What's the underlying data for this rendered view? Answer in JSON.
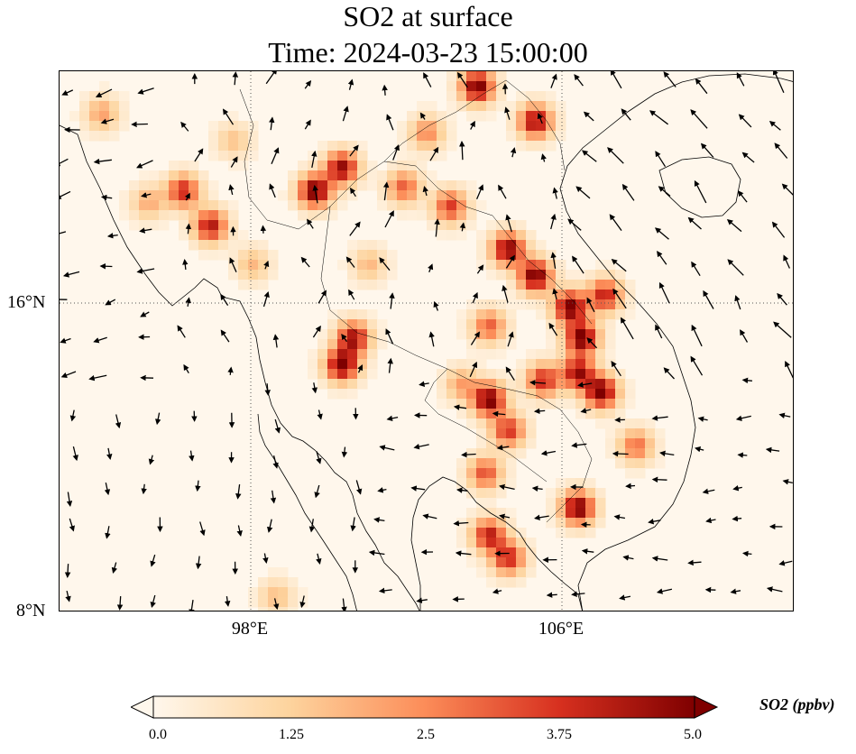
{
  "title": {
    "line1": "SO2 at surface",
    "line2": "Time: 2024-03-23 15:00:00"
  },
  "axes": {
    "y_ticks": [
      "16°N",
      "8°N"
    ],
    "x_ticks": [
      "98°E",
      "106°E"
    ],
    "gridlines": true,
    "gridline_style": "dotted"
  },
  "colorbar": {
    "label": "SO2 (ppbv)",
    "ticks": [
      "0.0",
      "1.25",
      "2.5",
      "3.75",
      "5.0"
    ],
    "min": 0.0,
    "max": 5.0,
    "colormap": "OrRd",
    "extend": "both",
    "colors": [
      "#fff7ec",
      "#fdd49e",
      "#fc8d59",
      "#d7301f",
      "#7f0000"
    ]
  },
  "chart_data": {
    "type": "heatmap",
    "variable": "SO2 at surface",
    "time": "2024-03-23 15:00:00",
    "units": "ppbv",
    "lon_range": [
      93.0,
      112.0
    ],
    "lat_range": [
      8.0,
      22.0
    ],
    "overlay": "wind vectors (quiver)",
    "hotspots": [
      {
        "lon": 103.8,
        "lat": 21.6,
        "value": 5.0
      },
      {
        "lon": 105.3,
        "lat": 20.7,
        "value": 4.5
      },
      {
        "lon": 103.1,
        "lat": 18.5,
        "value": 3.5
      },
      {
        "lon": 99.6,
        "lat": 18.9,
        "value": 5.0
      },
      {
        "lon": 100.3,
        "lat": 19.5,
        "value": 4.6
      },
      {
        "lon": 101.9,
        "lat": 19.0,
        "value": 3.0
      },
      {
        "lon": 96.2,
        "lat": 18.9,
        "value": 3.8
      },
      {
        "lon": 96.9,
        "lat": 18.0,
        "value": 4.2
      },
      {
        "lon": 100.3,
        "lat": 14.4,
        "value": 5.0
      },
      {
        "lon": 100.6,
        "lat": 15.1,
        "value": 4.3
      },
      {
        "lon": 104.6,
        "lat": 17.4,
        "value": 4.8
      },
      {
        "lon": 105.3,
        "lat": 16.7,
        "value": 5.0
      },
      {
        "lon": 106.2,
        "lat": 15.9,
        "value": 5.0
      },
      {
        "lon": 106.5,
        "lat": 15.1,
        "value": 5.0
      },
      {
        "lon": 107.1,
        "lat": 16.2,
        "value": 4.0
      },
      {
        "lon": 106.4,
        "lat": 14.2,
        "value": 4.4
      },
      {
        "lon": 107.0,
        "lat": 13.7,
        "value": 5.0
      },
      {
        "lon": 105.5,
        "lat": 14.0,
        "value": 3.8
      },
      {
        "lon": 104.1,
        "lat": 13.5,
        "value": 5.0
      },
      {
        "lon": 104.6,
        "lat": 12.7,
        "value": 3.6
      },
      {
        "lon": 104.0,
        "lat": 11.6,
        "value": 3.2
      },
      {
        "lon": 104.6,
        "lat": 9.4,
        "value": 3.8
      },
      {
        "lon": 104.1,
        "lat": 10.0,
        "value": 4.0
      },
      {
        "lon": 106.4,
        "lat": 10.7,
        "value": 5.0
      },
      {
        "lon": 107.9,
        "lat": 12.3,
        "value": 2.8
      },
      {
        "lon": 102.5,
        "lat": 20.4,
        "value": 2.4
      },
      {
        "lon": 104.1,
        "lat": 15.4,
        "value": 3.0
      },
      {
        "lon": 103.4,
        "lat": 13.9,
        "value": 2.0
      },
      {
        "lon": 94.1,
        "lat": 20.9,
        "value": 2.0
      },
      {
        "lon": 95.3,
        "lat": 18.6,
        "value": 1.8
      },
      {
        "lon": 98.0,
        "lat": 17.0,
        "value": 1.6
      },
      {
        "lon": 97.5,
        "lat": 20.2,
        "value": 1.4
      },
      {
        "lon": 101.0,
        "lat": 17.0,
        "value": 1.6
      },
      {
        "lon": 98.6,
        "lat": 8.4,
        "value": 1.5
      }
    ]
  }
}
